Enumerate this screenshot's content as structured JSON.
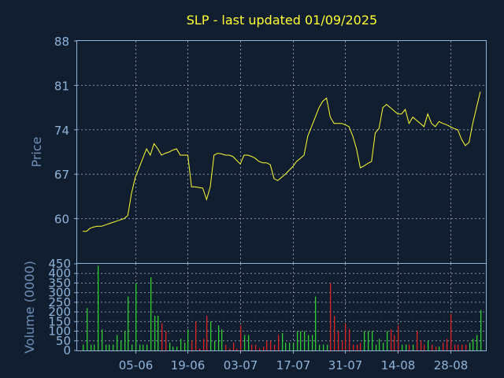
{
  "chart_data": [
    {
      "type": "line",
      "title": "SLP - last updated 01/09/2025",
      "ylabel": "Price",
      "ylim": [
        53,
        88
      ],
      "yticks": [
        "88",
        "81",
        "74",
        "67",
        "60"
      ],
      "ytick_values": [
        88,
        81,
        74,
        67,
        60
      ],
      "line_color": "#ffff33",
      "grid": true,
      "series": [
        {
          "values": [
            58.0,
            58.0,
            58.5,
            58.7,
            58.8,
            58.8,
            59.0,
            59.2,
            59.4,
            59.6,
            59.8,
            60.0,
            60.5,
            64.0,
            66.5,
            68.0,
            69.5,
            71.0,
            70.0,
            71.8,
            71.0,
            70.0,
            70.3,
            70.5,
            70.8,
            71.0,
            70.0,
            70.0,
            70.0,
            65.0,
            65.0,
            64.9,
            64.8,
            63.0,
            65.0,
            70.0,
            70.3,
            70.2,
            70.0,
            70.0,
            69.8,
            69.2,
            68.6,
            70.0,
            70.0,
            69.8,
            69.5,
            69.0,
            68.8,
            68.8,
            68.5,
            66.3,
            66.0,
            66.5,
            67.0,
            67.6,
            68.2,
            69.0,
            69.5,
            70.0,
            73.0,
            74.5,
            76.0,
            77.5,
            78.5,
            79.0,
            76.0,
            75.0,
            75.0,
            75.0,
            74.8,
            74.5,
            73.0,
            71.0,
            68.0,
            68.3,
            68.7,
            69.0,
            73.5,
            74.2,
            77.5,
            78.0,
            77.5,
            77.0,
            76.5,
            76.5,
            77.2,
            75.0,
            76.0,
            75.5,
            75.0,
            74.5,
            76.5,
            75.0,
            74.5,
            75.3,
            75.0,
            74.8,
            74.5,
            74.2,
            74.0,
            72.5,
            71.5,
            72.0,
            75.0,
            77.5,
            80.0
          ]
        }
      ]
    },
    {
      "type": "bar",
      "ylabel": "Volume (0000)",
      "ylim": [
        0,
        450
      ],
      "yticks": [
        "450",
        "400",
        "350",
        "300",
        "250",
        "200",
        "150",
        "100",
        "50",
        "0"
      ],
      "ytick_values": [
        450,
        400,
        350,
        300,
        250,
        200,
        150,
        100,
        50,
        0
      ],
      "x_tick_labels": [
        "05-06",
        "19-06",
        "03-07",
        "17-07",
        "31-07",
        "14-08",
        "28-08"
      ],
      "x_tick_index": [
        14,
        28,
        42,
        56,
        70,
        84,
        98
      ],
      "up_color": "#33cc33",
      "down_color": "#dd2222",
      "grid": true,
      "values": [
        30,
        220,
        30,
        30,
        440,
        110,
        30,
        30,
        30,
        80,
        50,
        100,
        280,
        30,
        350,
        30,
        30,
        30,
        380,
        180,
        180,
        140,
        100,
        40,
        20,
        20,
        60,
        40,
        110,
        50,
        150,
        10,
        60,
        180,
        150,
        50,
        130,
        110,
        30,
        10,
        40,
        10,
        130,
        80,
        80,
        30,
        30,
        10,
        20,
        50,
        50,
        30,
        80,
        90,
        40,
        40,
        40,
        100,
        100,
        100,
        80,
        80,
        280,
        30,
        30,
        30,
        350,
        180,
        100,
        50,
        140,
        110,
        30,
        30,
        40,
        100,
        100,
        100,
        30,
        60,
        40,
        100,
        110,
        80,
        130,
        30,
        30,
        30,
        30,
        100,
        50,
        30,
        50,
        30,
        20,
        20,
        40,
        60,
        190,
        30,
        30,
        30,
        30,
        40,
        60,
        80,
        210
      ],
      "up_flags": [
        1,
        1,
        1,
        1,
        1,
        1,
        1,
        1,
        1,
        1,
        1,
        1,
        1,
        1,
        1,
        1,
        1,
        1,
        1,
        1,
        1,
        0,
        0,
        1,
        1,
        1,
        1,
        1,
        1,
        0,
        0,
        0,
        0,
        0,
        1,
        1,
        1,
        1,
        0,
        0,
        0,
        0,
        0,
        1,
        1,
        0,
        0,
        0,
        0,
        0,
        0,
        0,
        0,
        1,
        1,
        1,
        1,
        1,
        1,
        1,
        1,
        1,
        1,
        1,
        1,
        1,
        0,
        0,
        0,
        0,
        0,
        0,
        0,
        0,
        0,
        1,
        1,
        1,
        1,
        1,
        1,
        1,
        0,
        0,
        0,
        1,
        1,
        0,
        1,
        0,
        0,
        0,
        1,
        0,
        0,
        1,
        0,
        0,
        0,
        0,
        0,
        0,
        0,
        1,
        1,
        1,
        1
      ]
    }
  ]
}
